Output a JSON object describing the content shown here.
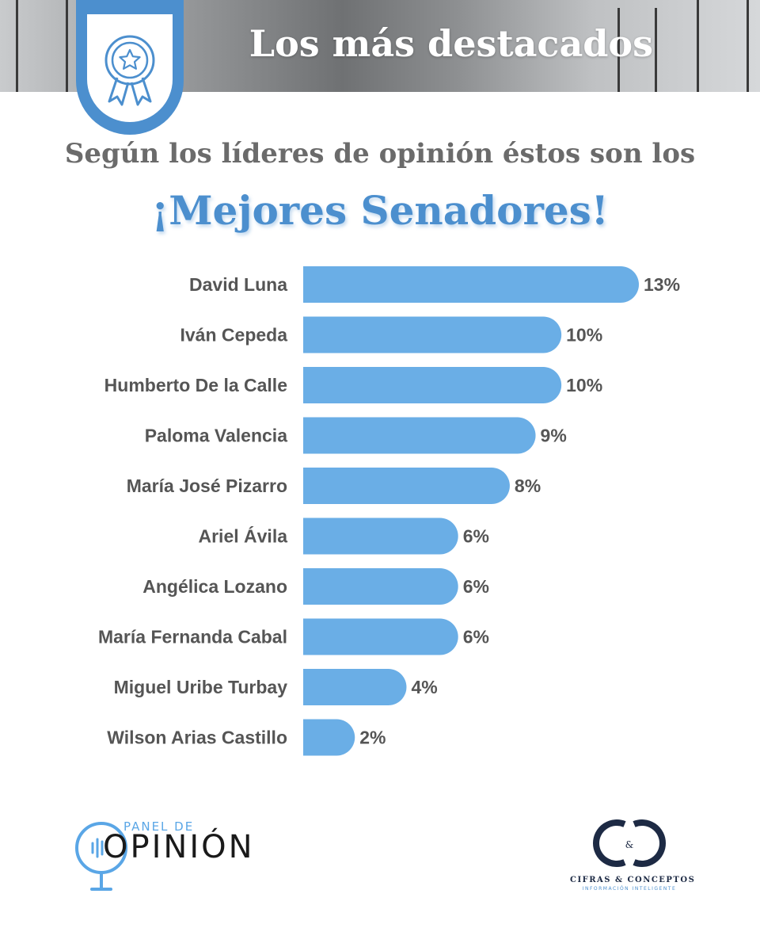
{
  "header": {
    "banner_title": "Los más destacados",
    "badge_icon": "award-ribbon-icon"
  },
  "subtitle": "Según los líderes de opinión éstos son los",
  "headline": "¡Mejores Senadores!",
  "colors": {
    "bar": "#6aaee6",
    "accent": "#4c8fce",
    "label_text": "#555555",
    "value_text": "#555555"
  },
  "chart_data": {
    "type": "bar",
    "orientation": "horizontal",
    "categories": [
      "David Luna",
      "Iván Cepeda",
      "Humberto De la Calle",
      "Paloma Valencia",
      "María José Pizarro",
      "Ariel Ávila",
      "Angélica Lozano",
      "María Fernanda Cabal",
      "Miguel Uribe Turbay",
      "Wilson Arias Castillo"
    ],
    "values": [
      13,
      10,
      10,
      9,
      8,
      6,
      6,
      6,
      4,
      2
    ],
    "value_labels": [
      "13%",
      "10%",
      "10%",
      "9%",
      "8%",
      "6%",
      "6%",
      "6%",
      "4%",
      "2%"
    ],
    "unit": "%",
    "title": "",
    "xlabel": "",
    "ylabel": "",
    "grid": false,
    "legend": "none"
  },
  "footer": {
    "left_logo": {
      "small": "PANEL DE",
      "big": "OPINIÓN",
      "icon": "microphone-icon"
    },
    "right_logo": {
      "mark": "&",
      "name": "CIFRAS & CONCEPTOS",
      "tagline": "INFORMACIÓN INTELIGENTE"
    }
  }
}
